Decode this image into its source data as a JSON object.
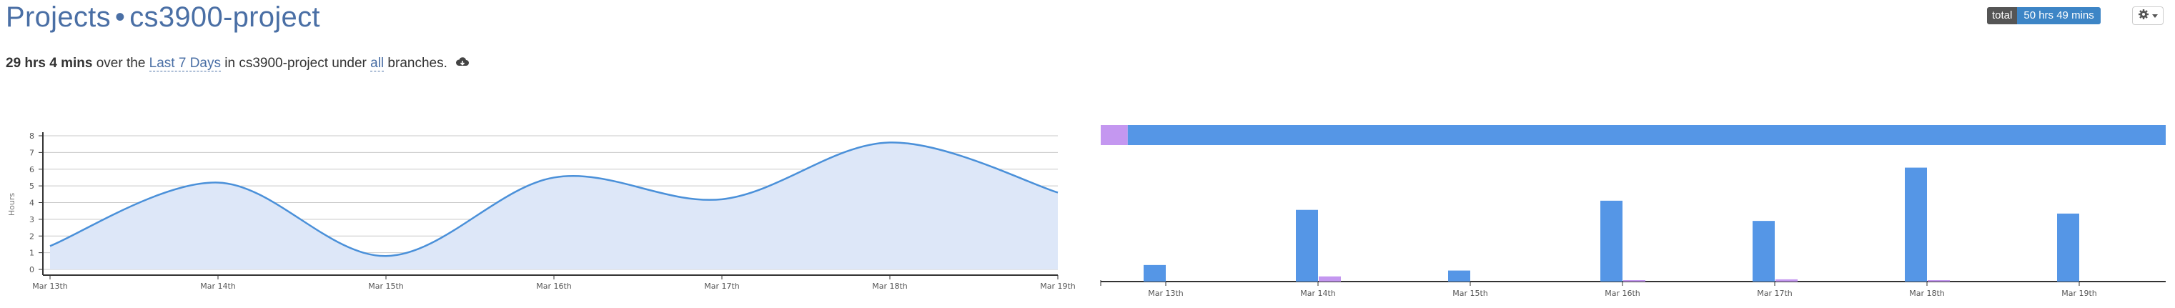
{
  "header": {
    "projects_label": "Projects",
    "separator": "•",
    "project_name": "cs3900-project"
  },
  "total": {
    "label": "total",
    "value": "50 hrs 49 mins"
  },
  "summary": {
    "duration": "29 hrs 4 mins",
    "text1": " over the ",
    "range_link": "Last 7 Days",
    "text2": " in cs3900-project under ",
    "branch_link": "all",
    "text3": " branches."
  },
  "colors": {
    "accent": "#3d85c6",
    "line": "#4a90d9",
    "area": "#dde7f8",
    "bar_blue": "#5596e6",
    "bar_purple": "#c497f0"
  },
  "chart_data": [
    {
      "type": "area",
      "ylabel": "Hours",
      "ylim": [
        0,
        8
      ],
      "y_ticks": [
        "0",
        "1",
        "2",
        "3",
        "4",
        "5",
        "6",
        "7",
        "8"
      ],
      "categories": [
        "Mar 13th",
        "Mar 14th",
        "Mar 15th",
        "Mar 16th",
        "Mar 17th",
        "Mar 18th",
        "Mar 19th"
      ],
      "values": [
        1.4,
        5.2,
        0.8,
        5.5,
        4.2,
        7.6,
        4.6
      ],
      "grid": true
    },
    {
      "type": "bar",
      "categories": [
        "Mar 13th",
        "Mar 14th",
        "Mar 15th",
        "Mar 16th",
        "Mar 17th",
        "Mar 18th",
        "Mar 19th"
      ],
      "series": [
        {
          "values": [
            0.9,
            3.9,
            0.6,
            4.4,
            3.3,
            6.2,
            3.7
          ]
        },
        {
          "values": [
            0,
            0.28,
            0,
            0.05,
            0.12,
            0.02,
            0
          ]
        }
      ],
      "stacked_bar_fraction": [
        0.02,
        0.98
      ]
    }
  ]
}
